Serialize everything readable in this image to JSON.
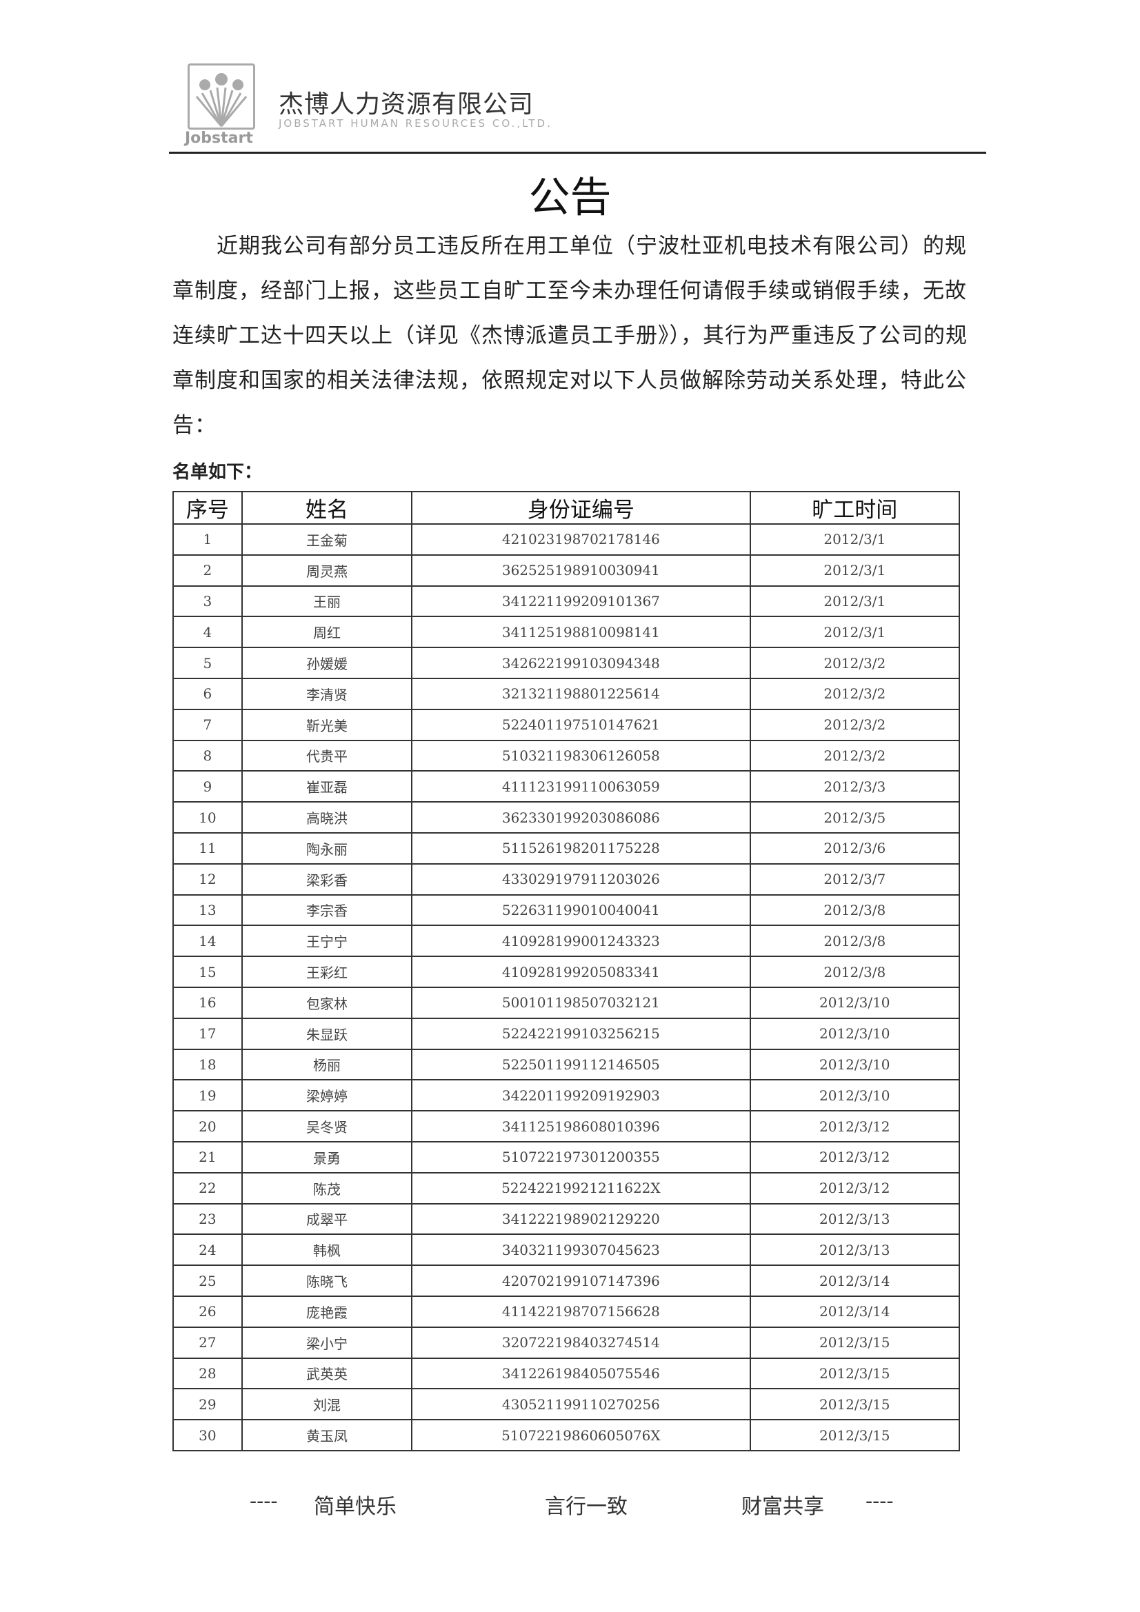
{
  "header": {
    "logo_text": "Jobstart",
    "company_cn": "杰博人力资源有限公司",
    "company_en": "JOBSTART HUMAN RESOURCES CO.,LTD."
  },
  "title": "公告",
  "body": "近期我公司有部分员工违反所在用工单位（宁波杜亚机电技术有限公司）的规章制度，经部门上报，这些员工自旷工至今未办理任何请假手续或销假手续，无故连续旷工达十四天以上（详见《杰博派遣员工手册》），其行为严重违反了公司的规章制度和国家的相关法律法规，依照规定对以下人员做解除劳动关系处理，特此公告：",
  "list_label": "名单如下：",
  "table": {
    "headers": [
      "序号",
      "姓名",
      "身份证编号",
      "旷工时间"
    ],
    "rows": [
      [
        "1",
        "王金菊",
        "421023198702178146",
        "2012/3/1"
      ],
      [
        "2",
        "周灵燕",
        "362525198910030941",
        "2012/3/1"
      ],
      [
        "3",
        "王丽",
        "341221199209101367",
        "2012/3/1"
      ],
      [
        "4",
        "周红",
        "341125198810098141",
        "2012/3/1"
      ],
      [
        "5",
        "孙媛媛",
        "342622199103094348",
        "2012/3/2"
      ],
      [
        "6",
        "李清贤",
        "321321198801225614",
        "2012/3/2"
      ],
      [
        "7",
        "靳光美",
        "522401197510147621",
        "2012/3/2"
      ],
      [
        "8",
        "代贵平",
        "510321198306126058",
        "2012/3/2"
      ],
      [
        "9",
        "崔亚磊",
        "411123199110063059",
        "2012/3/3"
      ],
      [
        "10",
        "高晓洪",
        "362330199203086086",
        "2012/3/5"
      ],
      [
        "11",
        "陶永丽",
        "511526198201175228",
        "2012/3/6"
      ],
      [
        "12",
        "梁彩香",
        "433029197911203026",
        "2012/3/7"
      ],
      [
        "13",
        "李宗香",
        "522631199010040041",
        "2012/3/8"
      ],
      [
        "14",
        "王宁宁",
        "410928199001243323",
        "2012/3/8"
      ],
      [
        "15",
        "王彩红",
        "410928199205083341",
        "2012/3/8"
      ],
      [
        "16",
        "包家林",
        "500101198507032121",
        "2012/3/10"
      ],
      [
        "17",
        "朱显跃",
        "522422199103256215",
        "2012/3/10"
      ],
      [
        "18",
        "杨丽",
        "522501199112146505",
        "2012/3/10"
      ],
      [
        "19",
        "梁婷婷",
        "342201199209192903",
        "2012/3/10"
      ],
      [
        "20",
        "吴冬贤",
        "341125198608010396",
        "2012/3/12"
      ],
      [
        "21",
        "景勇",
        "510722197301200355",
        "2012/3/12"
      ],
      [
        "22",
        "陈茂",
        "52242219921211622X",
        "2012/3/12"
      ],
      [
        "23",
        "成翠平",
        "341222198902129220",
        "2012/3/13"
      ],
      [
        "24",
        "韩枫",
        "340321199307045623",
        "2012/3/13"
      ],
      [
        "25",
        "陈晓飞",
        "420702199107147396",
        "2012/3/14"
      ],
      [
        "26",
        "庞艳霞",
        "411422198707156628",
        "2012/3/14"
      ],
      [
        "27",
        "梁小宁",
        "320722198403274514",
        "2012/3/15"
      ],
      [
        "28",
        "武英英",
        "341226198405075546",
        "2012/3/15"
      ],
      [
        "29",
        "刘混",
        "430521199110270256",
        "2012/3/15"
      ],
      [
        "30",
        "黄玉凤",
        "51072219860605076X",
        "2012/3/15"
      ]
    ]
  },
  "footer": {
    "dash_left": "----",
    "slogan_1": "简单快乐",
    "slogan_2": "言行一致",
    "slogan_3": "财富共享",
    "dash_right": "----"
  },
  "colors": {
    "text": "#222222",
    "logo_gray": "#999999"
  }
}
